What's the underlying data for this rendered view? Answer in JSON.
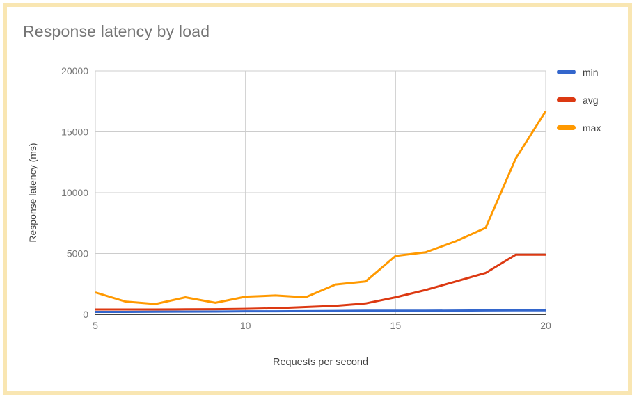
{
  "window": {
    "card_border_color": "#f9e6b2",
    "background": "#ffffff"
  },
  "chart_data": {
    "type": "line",
    "title": "Response latency by load",
    "xlabel": "Requests per second",
    "ylabel": "Response latency (ms)",
    "x": [
      5,
      6,
      7,
      8,
      9,
      10,
      11,
      12,
      13,
      14,
      15,
      16,
      17,
      18,
      19,
      20
    ],
    "series": [
      {
        "name": "min",
        "color": "#3366cc",
        "values": [
          200,
          200,
          210,
          220,
          230,
          250,
          250,
          260,
          280,
          300,
          300,
          300,
          310,
          320,
          330,
          330
        ]
      },
      {
        "name": "avg",
        "color": "#dc3912",
        "values": [
          400,
          400,
          400,
          410,
          420,
          450,
          500,
          600,
          700,
          900,
          1400,
          2000,
          2700,
          3400,
          4900,
          4900
        ]
      },
      {
        "name": "max",
        "color": "#ff9900",
        "values": [
          1800,
          1050,
          850,
          1400,
          950,
          1450,
          1550,
          1400,
          2450,
          2700,
          4800,
          5100,
          6000,
          7100,
          12800,
          16700
        ]
      }
    ],
    "xlim": [
      5,
      20
    ],
    "ylim": [
      0,
      20000
    ],
    "x_ticks": [
      5,
      10,
      15,
      20
    ],
    "y_ticks": [
      0,
      5000,
      10000,
      15000,
      20000
    ],
    "grid": true,
    "legend_position": "right",
    "gridline_color": "#cccccc",
    "axis_line_color": "#424242",
    "tick_label_color": "#757575",
    "title_color": "#757575",
    "axis_title_color": "#424242"
  }
}
